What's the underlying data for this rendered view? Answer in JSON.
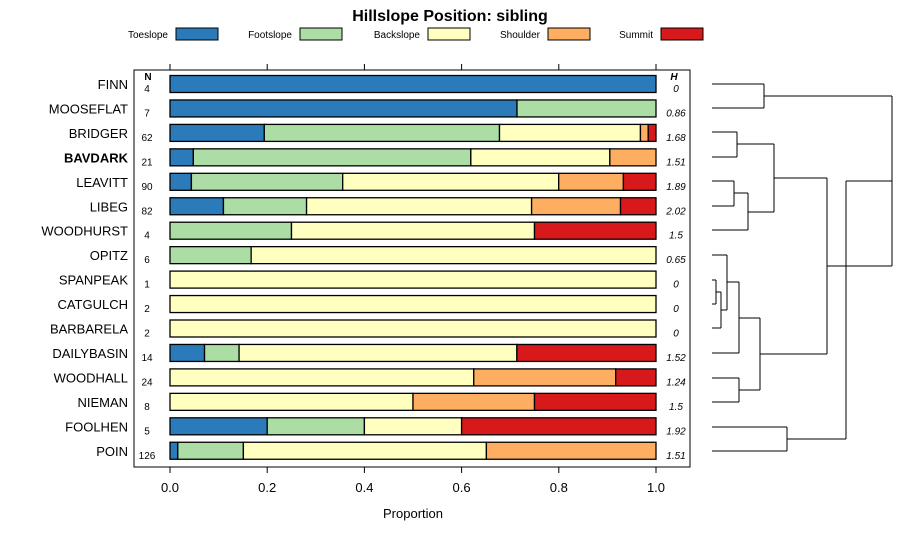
{
  "chart_data": {
    "type": "bar",
    "orientation": "horizontal",
    "stacked": true,
    "title": "Hillslope Position: sibling",
    "xlabel": "Proportion",
    "xlim": [
      0,
      1
    ],
    "xticks": [
      "0.0",
      "0.2",
      "0.4",
      "0.6",
      "0.8",
      "1.0"
    ],
    "n_header": "N",
    "h_header": "H",
    "legend_position": "top",
    "series": [
      {
        "name": "Toeslope",
        "color": "#2b7bba"
      },
      {
        "name": "Footslope",
        "color": "#abdda4"
      },
      {
        "name": "Backslope",
        "color": "#ffffbf"
      },
      {
        "name": "Shoulder",
        "color": "#fdae61"
      },
      {
        "name": "Summit",
        "color": "#d7191c"
      }
    ],
    "rows": [
      {
        "label": "FINN",
        "bold": false,
        "n": "4",
        "h": "0",
        "values": [
          1.0,
          0,
          0,
          0,
          0
        ]
      },
      {
        "label": "MOOSEFLAT",
        "bold": false,
        "n": "7",
        "h": "0.86",
        "values": [
          0.714,
          0.286,
          0,
          0,
          0
        ]
      },
      {
        "label": "BRIDGER",
        "bold": false,
        "n": "62",
        "h": "1.68",
        "values": [
          0.194,
          0.484,
          0.29,
          0.016,
          0.016
        ]
      },
      {
        "label": "BAVDARK",
        "bold": true,
        "n": "21",
        "h": "1.51",
        "values": [
          0.048,
          0.571,
          0.286,
          0.095,
          0
        ]
      },
      {
        "label": "LEAVITT",
        "bold": false,
        "n": "90",
        "h": "1.89",
        "values": [
          0.044,
          0.311,
          0.444,
          0.133,
          0.067
        ]
      },
      {
        "label": "LIBEG",
        "bold": false,
        "n": "82",
        "h": "2.02",
        "values": [
          0.11,
          0.171,
          0.463,
          0.183,
          0.073
        ]
      },
      {
        "label": "WOODHURST",
        "bold": false,
        "n": "4",
        "h": "1.5",
        "values": [
          0,
          0.25,
          0.5,
          0,
          0.25
        ]
      },
      {
        "label": "OPITZ",
        "bold": false,
        "n": "6",
        "h": "0.65",
        "values": [
          0,
          0.167,
          0.833,
          0,
          0
        ]
      },
      {
        "label": "SPANPEAK",
        "bold": false,
        "n": "1",
        "h": "0",
        "values": [
          0,
          0,
          1.0,
          0,
          0
        ]
      },
      {
        "label": "CATGULCH",
        "bold": false,
        "n": "2",
        "h": "0",
        "values": [
          0,
          0,
          1.0,
          0,
          0
        ]
      },
      {
        "label": "BARBARELA",
        "bold": false,
        "n": "2",
        "h": "0",
        "values": [
          0,
          0,
          1.0,
          0,
          0
        ]
      },
      {
        "label": "DAILYBASIN",
        "bold": false,
        "n": "14",
        "h": "1.52",
        "values": [
          0.071,
          0.071,
          0.571,
          0,
          0.286
        ]
      },
      {
        "label": "WOODHALL",
        "bold": false,
        "n": "24",
        "h": "1.24",
        "values": [
          0,
          0,
          0.625,
          0.292,
          0.083
        ]
      },
      {
        "label": "NIEMAN",
        "bold": false,
        "n": "8",
        "h": "1.5",
        "values": [
          0,
          0,
          0.5,
          0.25,
          0.25
        ]
      },
      {
        "label": "FOOLHEN",
        "bold": false,
        "n": "5",
        "h": "1.92",
        "values": [
          0.2,
          0.2,
          0.2,
          0,
          0.4
        ]
      },
      {
        "label": "POIN",
        "bold": false,
        "n": "126",
        "h": "1.51",
        "values": [
          0.016,
          0.135,
          0.5,
          0.349,
          0
        ]
      }
    ]
  }
}
